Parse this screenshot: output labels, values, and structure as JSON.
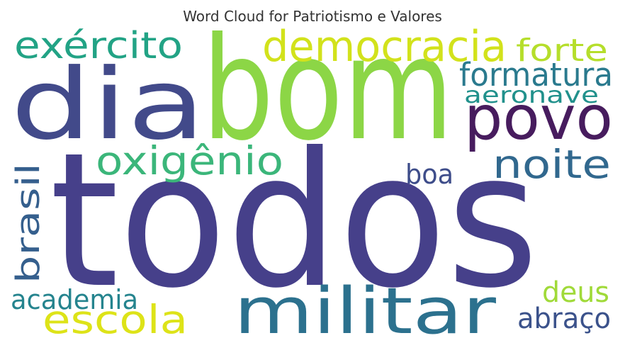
{
  "chart_data": {
    "type": "wordcloud",
    "title": "Word Cloud for Patriotismo e Valores",
    "words": [
      {
        "text": "todos",
        "color": "#46408a"
      },
      {
        "text": "bom",
        "color": "#8cd646"
      },
      {
        "text": "dia",
        "color": "#424a8a"
      },
      {
        "text": "democracia",
        "color": "#d2e21b"
      },
      {
        "text": "exército",
        "color": "#22a385"
      },
      {
        "text": "forte",
        "color": "#b5de2b"
      },
      {
        "text": "formatura",
        "color": "#2a7a8e"
      },
      {
        "text": "aeronave",
        "color": "#21918c"
      },
      {
        "text": "povo",
        "color": "#471c5e"
      },
      {
        "text": "oxigênio",
        "color": "#3bb67a"
      },
      {
        "text": "noite",
        "color": "#31688e"
      },
      {
        "text": "boa",
        "color": "#3e4d8a"
      },
      {
        "text": "brasil",
        "color": "#355f8d"
      },
      {
        "text": "academia",
        "color": "#25848e"
      },
      {
        "text": "escola",
        "color": "#dde318"
      },
      {
        "text": "militar",
        "color": "#2c718e"
      },
      {
        "text": "deus",
        "color": "#a0da39"
      },
      {
        "text": "abraço",
        "color": "#3b528b"
      }
    ]
  }
}
